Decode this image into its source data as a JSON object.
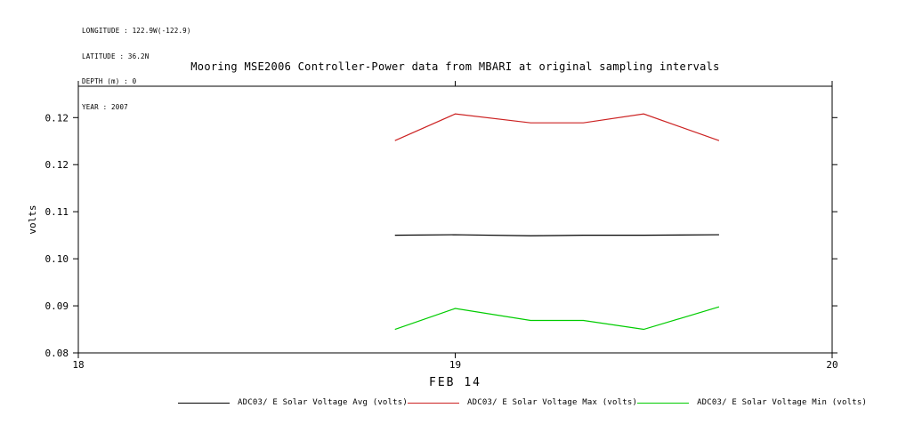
{
  "header": {
    "longitude": "LONGITUDE : 122.9W(-122.9)",
    "latitude": "LATITUDE : 36.2N",
    "depth": "DEPTH (m) : 0",
    "year": "YEAR : 2007"
  },
  "title": "Mooring MSE2006 Controller-Power data from MBARI at original sampling intervals",
  "chart_data": {
    "type": "line",
    "title": "Mooring MSE2006 Controller-Power data from MBARI at original sampling intervals",
    "xlabel": "FEB 14",
    "ylabel": "volts",
    "xlim": [
      18,
      20
    ],
    "ylim": [
      0.08,
      0.131
    ],
    "grid": false,
    "legend_position": "bottom",
    "x_ticks": [
      {
        "value": 18,
        "label": "18"
      },
      {
        "value": 19,
        "label": "19"
      },
      {
        "value": 20,
        "label": "20"
      }
    ],
    "y_ticks": [
      {
        "value": 0.08,
        "label": "0.08"
      },
      {
        "value": 0.089,
        "label": "0.09"
      },
      {
        "value": 0.098,
        "label": "0.10"
      },
      {
        "value": 0.107,
        "label": "0.11"
      },
      {
        "value": 0.116,
        "label": "0.12"
      },
      {
        "value": 0.125,
        "label": "0.12"
      }
    ],
    "x": [
      18.84,
      19.0,
      19.2,
      19.34,
      19.5,
      19.7
    ],
    "series": [
      {
        "name": "ADC03/ E Solar Voltage Avg (volts)",
        "color": "#000000",
        "values": [
          0.1025,
          0.1026,
          0.1024,
          0.1025,
          0.1025,
          0.1026
        ]
      },
      {
        "name": "ADC03/ E Solar Voltage Max (volts)",
        "color": "#cc2222",
        "values": [
          0.1206,
          0.1257,
          0.124,
          0.124,
          0.1257,
          0.1206
        ]
      },
      {
        "name": "ADC03/ E Solar Voltage Min (volts)",
        "color": "#00cc00",
        "values": [
          0.0845,
          0.0885,
          0.0862,
          0.0862,
          0.0845,
          0.0888
        ]
      }
    ]
  }
}
